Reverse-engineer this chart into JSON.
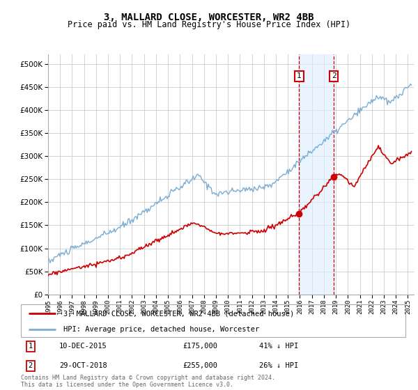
{
  "title": "3, MALLARD CLOSE, WORCESTER, WR2 4BB",
  "subtitle": "Price paid vs. HM Land Registry's House Price Index (HPI)",
  "ytick_vals": [
    0,
    50000,
    100000,
    150000,
    200000,
    250000,
    300000,
    350000,
    400000,
    450000,
    500000
  ],
  "ylim": [
    0,
    520000
  ],
  "xlim_start": 1995.0,
  "xlim_end": 2025.5,
  "sale1": {
    "date_num": 2015.94,
    "price": 175000,
    "label": "1",
    "date_str": "10-DEC-2015",
    "pct": "41% ↓ HPI"
  },
  "sale2": {
    "date_num": 2018.83,
    "price": 255000,
    "label": "2",
    "date_str": "29-OCT-2018",
    "pct": "26% ↓ HPI"
  },
  "legend_entries": [
    "3, MALLARD CLOSE, WORCESTER, WR2 4BB (detached house)",
    "HPI: Average price, detached house, Worcester"
  ],
  "footer": "Contains HM Land Registry data © Crown copyright and database right 2024.\nThis data is licensed under the Open Government Licence v3.0.",
  "hpi_color": "#7aadd4",
  "sale_color": "#cc0000",
  "marker_color": "#cc0000",
  "shade_color": "#ddeeff",
  "vline_color": "#cc0000",
  "grid_color": "#cccccc",
  "background_color": "#ffffff"
}
